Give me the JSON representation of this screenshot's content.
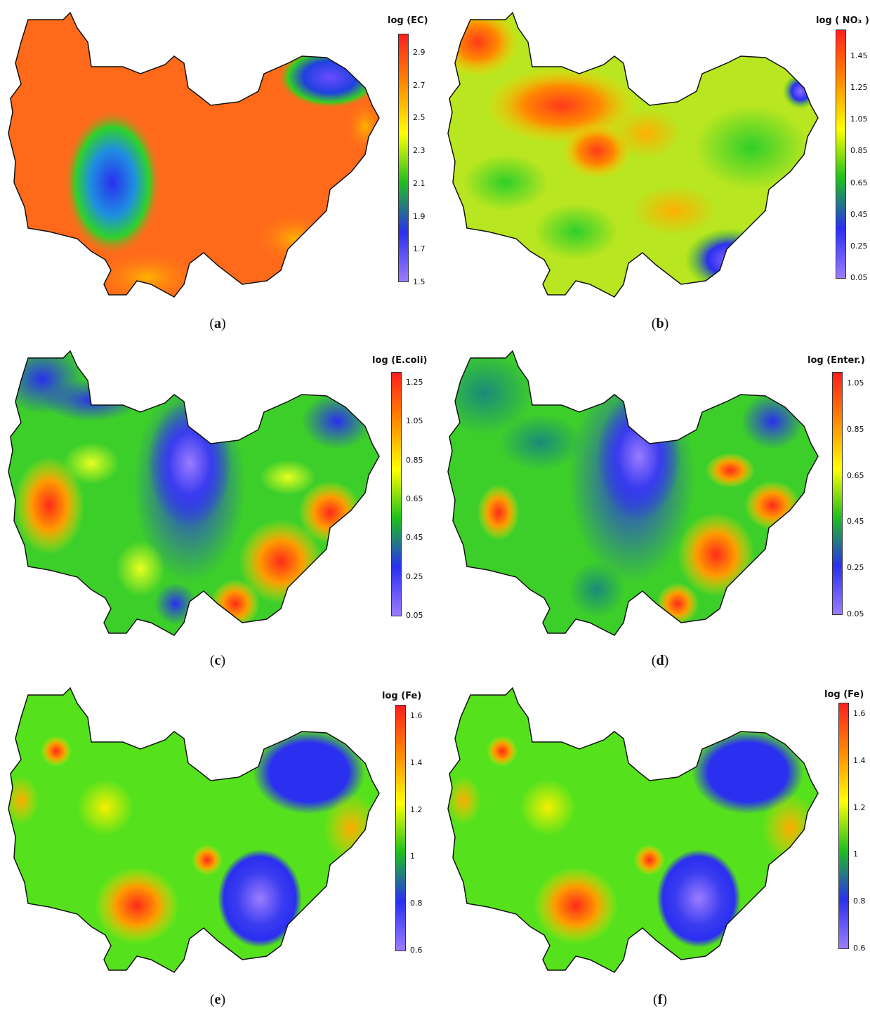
{
  "colormap": [
    "#9b7cff",
    "#2a2ff0",
    "#1dbf1d",
    "#ffff00",
    "#ff8a00",
    "#ff1e1e"
  ],
  "panels": [
    {
      "id": "a",
      "legend_title": "log (EC)",
      "ticks": [
        "2.9",
        "2.7",
        "2.5",
        "2.3",
        "2.1",
        "1.9",
        "1.7",
        "1.5"
      ],
      "caption": "a",
      "base_color": "#ff6a1a",
      "features": [
        {
          "shape": "blob",
          "color": "#1e3fe8",
          "note": "low"
        },
        {
          "shape": "blob",
          "color": "#4b33e6",
          "note": "low"
        }
      ]
    },
    {
      "id": "b",
      "legend_title": "log ( NO₃ )",
      "ticks": [
        "1.45",
        "1.25",
        "1.05",
        "0.85",
        "0.65",
        "0.45",
        "0.25",
        "0.05"
      ],
      "caption": "b",
      "base_color": "#9ee020"
    },
    {
      "id": "c",
      "legend_title": "log (E.coli)",
      "ticks": [
        "1.25",
        "1.05",
        "0.85",
        "0.65",
        "0.45",
        "0.25",
        "0.05"
      ],
      "caption": "c",
      "base_color": "#3ccf2a"
    },
    {
      "id": "d",
      "legend_title": "log (Enter.)",
      "ticks": [
        "1.05",
        "0.85",
        "0.65",
        "0.45",
        "0.25",
        "0.05"
      ],
      "caption": "d",
      "base_color": "#3ccf2a"
    },
    {
      "id": "e",
      "legend_title": "log (Fe)",
      "ticks": [
        "1.6",
        "1.4",
        "1.2",
        "1",
        "0.8",
        "0.6"
      ],
      "caption": "e",
      "base_color": "#55e21c"
    },
    {
      "id": "f",
      "legend_title": "log (Fe)",
      "ticks": [
        "1.6",
        "1.4",
        "1.2",
        "1",
        "0.8",
        "0.6"
      ],
      "caption": "f",
      "base_color": "#55e21c"
    }
  ]
}
